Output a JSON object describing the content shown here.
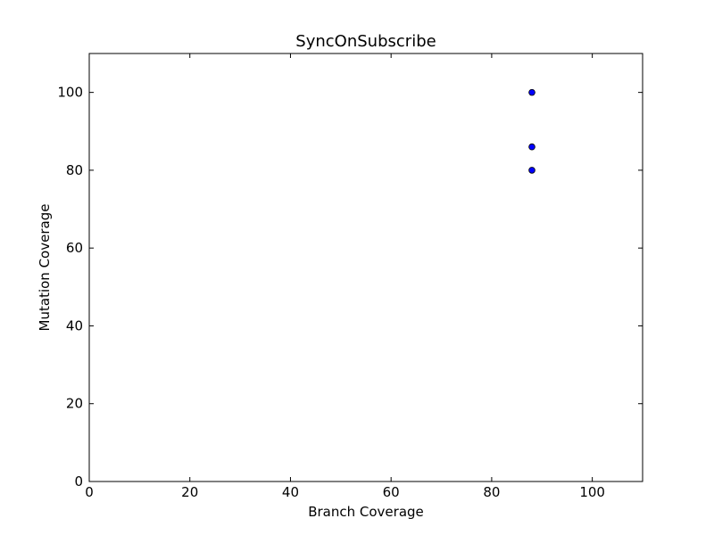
{
  "chart_data": {
    "type": "scatter",
    "title": "SyncOnSubscribe",
    "xlabel": "Branch Coverage",
    "ylabel": "Mutation Coverage",
    "xlim": [
      0,
      110
    ],
    "ylim": [
      0,
      110
    ],
    "xticks": [
      0,
      20,
      40,
      60,
      80,
      100
    ],
    "yticks": [
      0,
      20,
      40,
      60,
      80,
      100
    ],
    "xtick_labels": [
      "0",
      "20",
      "40",
      "60",
      "80",
      "100"
    ],
    "ytick_labels": [
      "0",
      "20",
      "40",
      "60",
      "80",
      "100"
    ],
    "grid": false,
    "series": [
      {
        "color": "#0000ff",
        "edge_color": "#000000",
        "x": [
          88,
          88,
          88
        ],
        "y": [
          100,
          86,
          80
        ]
      }
    ]
  }
}
